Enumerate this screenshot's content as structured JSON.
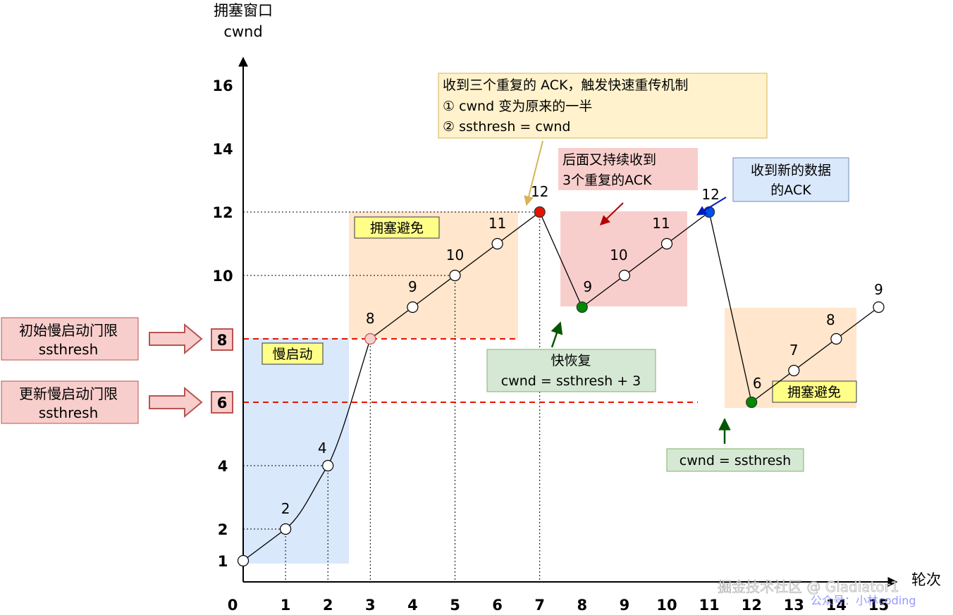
{
  "axis": {
    "y_title": "拥塞窗口",
    "y_unit": "cwnd",
    "x_title": "轮次",
    "x_ticks": [
      "0",
      "1",
      "2",
      "3",
      "4",
      "5",
      "6",
      "7",
      "8",
      "9",
      "10",
      "11",
      "12",
      "13",
      "14",
      "15"
    ],
    "y_ticks": [
      "1",
      "2",
      "4",
      "6",
      "8",
      "10",
      "12",
      "14",
      "16"
    ]
  },
  "points": [
    {
      "round": 0,
      "cwnd": 1,
      "label": "1",
      "color": "#ffffff"
    },
    {
      "round": 1,
      "cwnd": 2,
      "label": "2",
      "color": "#ffffff"
    },
    {
      "round": 2,
      "cwnd": 4,
      "label": "4",
      "color": "#ffffff"
    },
    {
      "round": 3,
      "cwnd": 8,
      "label": "8",
      "color": "#f8cecc"
    },
    {
      "round": 4,
      "cwnd": 9,
      "label": "9",
      "color": "#ffffff"
    },
    {
      "round": 5,
      "cwnd": 10,
      "label": "10",
      "color": "#ffffff"
    },
    {
      "round": 6,
      "cwnd": 11,
      "label": "11",
      "color": "#ffffff"
    },
    {
      "round": 7,
      "cwnd": 12,
      "label": "12",
      "color": "#e51400"
    },
    {
      "round": 8,
      "cwnd": 9,
      "label": "9",
      "color": "#008a00"
    },
    {
      "round": 9,
      "cwnd": 10,
      "label": "10",
      "color": "#ffffff"
    },
    {
      "round": 10,
      "cwnd": 11,
      "label": "11",
      "color": "#ffffff"
    },
    {
      "round": 11,
      "cwnd": 12,
      "label": "12",
      "color": "#0050ef"
    },
    {
      "round": 12,
      "cwnd": 6,
      "label": "6",
      "color": "#008a00"
    },
    {
      "round": 13,
      "cwnd": 7,
      "label": "7",
      "color": "#ffffff"
    },
    {
      "round": 14,
      "cwnd": 8,
      "label": "8",
      "color": "#ffffff"
    },
    {
      "round": 15,
      "cwnd": 9,
      "label": "9",
      "color": "#ffffff"
    }
  ],
  "thresholds": {
    "initial": {
      "value": 8,
      "label_line1": "初始慢启动门限",
      "label_line2": "ssthresh",
      "tick": "8"
    },
    "updated": {
      "value": 6,
      "label_line1": "更新慢启动门限",
      "label_line2": "ssthresh",
      "tick": "6"
    }
  },
  "regions": {
    "slow_start": "慢启动",
    "avoid_1": "拥塞避免",
    "avoid_2": "拥塞避免"
  },
  "notes": {
    "triple_ack": {
      "line1": "收到三个重复的 ACK，触发快速重传机制",
      "line2": "① cwnd 变为原来的一半",
      "line3": "② ssthresh = cwnd"
    },
    "continued": {
      "line1": "后面又持续收到",
      "line2": "3个重复的ACK"
    },
    "new_ack": {
      "line1": "收到新的数据",
      "line2": "的ACK"
    },
    "fast_recovery": {
      "line1": "快恢复",
      "line2": "cwnd = ssthresh + 3"
    },
    "reset": {
      "line1": "cwnd = ssthresh"
    }
  },
  "watermark": {
    "line1": "掘金技术社区 @ Gladiator1",
    "line2": "公众号：小林coding"
  },
  "colors": {
    "slow_start_bg": "#dae8fc",
    "avoid_bg": "#ffe6cc",
    "fast_bg": "#f8cecc",
    "threshold_line": "#e51400",
    "yellow_note": "#fff2cc",
    "yellow_label": "#ffff88",
    "green_note": "#d5e8d4",
    "blue_note": "#dae8fc",
    "red_note": "#f8cecc"
  }
}
